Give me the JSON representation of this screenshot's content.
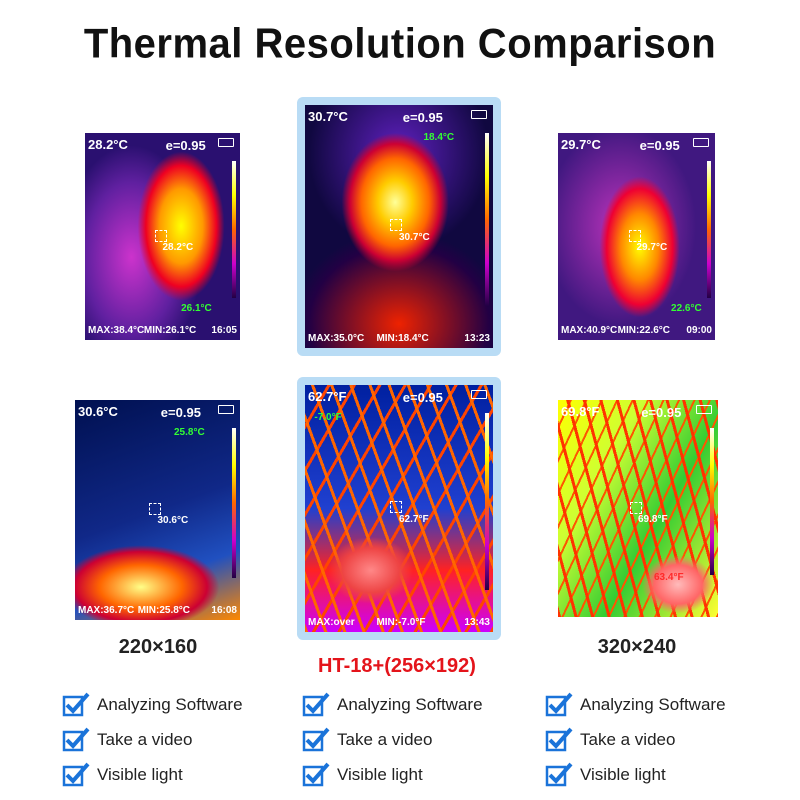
{
  "header": {
    "title": "Thermal Resolution Comparison"
  },
  "columns": [
    {
      "label": "220×160",
      "panels": [
        {
          "readout": "28.2°C",
          "emissivity": "e=0.95",
          "center": "28.2°C",
          "marker": "26.1°C",
          "max": "MAX:38.4°C",
          "min": "MIN:26.1°C",
          "time": "16:05"
        },
        {
          "readout": "30.6°C",
          "emissivity": "e=0.95",
          "center": "30.6°C",
          "marker": "25.8°C",
          "max": "MAX:36.7°C",
          "min": "MIN:25.8°C",
          "time": "16:08"
        }
      ],
      "features": [
        "Analyzing Software",
        "Take a video",
        "Visible light"
      ]
    },
    {
      "label": "HT-18+(256×192)",
      "panels": [
        {
          "readout": "30.7°C",
          "emissivity": "e=0.95",
          "center": "30.7°C",
          "marker": "18.4°C",
          "max": "MAX:35.0°C",
          "min": "MIN:18.4°C",
          "time": "13:23"
        },
        {
          "readout": "62.7°F",
          "emissivity": "e=0.95",
          "center": "62.7°F",
          "marker": "-7.0°F",
          "max": "MAX:over",
          "min": "MIN:-7.0°F",
          "time": "13:43"
        }
      ],
      "features": [
        "Analyzing Software",
        "Take a video",
        "Visible light"
      ]
    },
    {
      "label": "320×240",
      "panels": [
        {
          "readout": "29.7°C",
          "emissivity": "e=0.95",
          "center": "29.7°C",
          "marker": "22.6°C",
          "max": "MAX:40.9°C",
          "min": "MIN:22.6°C",
          "time": "09:00"
        },
        {
          "readout": "69.8°F",
          "emissivity": "e=0.95",
          "center": "69.8°F",
          "marker": "63.4°F"
        }
      ],
      "features": [
        "Analyzing Software",
        "Take a video",
        "Visible light"
      ]
    }
  ]
}
